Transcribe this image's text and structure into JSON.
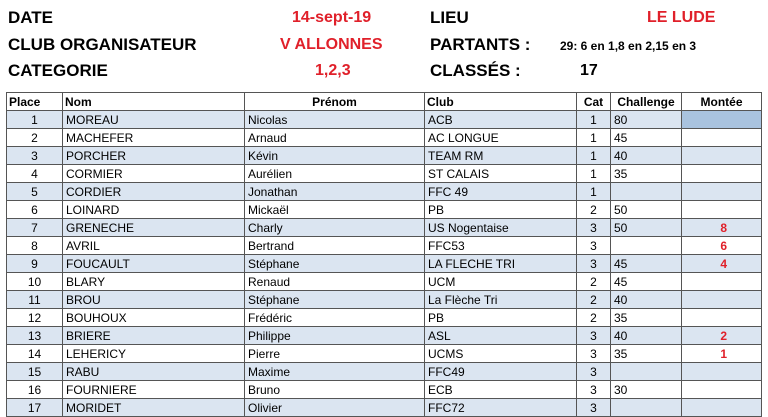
{
  "header": {
    "date_label": "DATE",
    "date_value": "14-sept-19",
    "lieu_label": "LIEU",
    "lieu_value": "LE LUDE",
    "club_label": "CLUB ORGANISATEUR",
    "club_value": "V ALLONNES",
    "partants_label": "PARTANTS :",
    "partants_value": "29: 6 en 1,8  en 2,15 en 3",
    "categorie_label": "CATEGORIE",
    "categorie_value": "1,2,3",
    "classes_label": "CLASSÉS :",
    "classes_value": "17"
  },
  "table": {
    "columns": {
      "place": "Place",
      "nom": "Nom",
      "prenom": "Prénom",
      "club": "Club",
      "cat": "Cat",
      "challenge": "Challenge",
      "montee": "Montée"
    },
    "rows": [
      {
        "place": "1",
        "nom": "MOREAU",
        "prenom": "Nicolas",
        "club": "ACB",
        "cat": "1",
        "challenge": "80",
        "montee": ""
      },
      {
        "place": "2",
        "nom": "MACHEFER",
        "prenom": "Arnaud",
        "club": "AC LONGUE",
        "cat": "1",
        "challenge": "45",
        "montee": ""
      },
      {
        "place": "3",
        "nom": "PORCHER",
        "prenom": "Kévin",
        "club": "TEAM RM",
        "cat": "1",
        "challenge": "40",
        "montee": ""
      },
      {
        "place": "4",
        "nom": "CORMIER",
        "prenom": "Aurélien",
        "club": " ST CALAIS",
        "cat": "1",
        "challenge": "35",
        "montee": ""
      },
      {
        "place": "5",
        "nom": "CORDIER",
        "prenom": "Jonathan",
        "club": "FFC 49",
        "cat": "1",
        "challenge": "",
        "montee": ""
      },
      {
        "place": "6",
        "nom": "LOINARD",
        "prenom": "Mickaël",
        "club": "PB",
        "cat": "2",
        "challenge": "50",
        "montee": ""
      },
      {
        "place": "7",
        "nom": "GRENECHE",
        "prenom": "Charly",
        "club": "US Nogentaise",
        "cat": "3",
        "challenge": "50",
        "montee": "8"
      },
      {
        "place": "8",
        "nom": "AVRIL",
        "prenom": "Bertrand",
        "club": "FFC53",
        "cat": "3",
        "challenge": "",
        "montee": "6"
      },
      {
        "place": "9",
        "nom": "FOUCAULT",
        "prenom": "Stéphane",
        "club": "LA FLECHE TRI",
        "cat": "3",
        "challenge": "45",
        "montee": "4"
      },
      {
        "place": "10",
        "nom": "BLARY",
        "prenom": "Renaud",
        "club": "UCM",
        "cat": "2",
        "challenge": "45",
        "montee": ""
      },
      {
        "place": "11",
        "nom": "BROU",
        "prenom": "Stéphane",
        "club": "La Flèche Tri",
        "cat": "2",
        "challenge": "40",
        "montee": ""
      },
      {
        "place": "12",
        "nom": "BOUHOUX",
        "prenom": "Frédéric",
        "club": "PB",
        "cat": "2",
        "challenge": "35",
        "montee": ""
      },
      {
        "place": "13",
        "nom": "BRIERE",
        "prenom": "Philippe",
        "club": "ASL",
        "cat": "3",
        "challenge": "40",
        "montee": "2"
      },
      {
        "place": "14",
        "nom": "LEHERICY",
        "prenom": "Pierre",
        "club": "UCMS",
        "cat": "3",
        "challenge": "35",
        "montee": "1"
      },
      {
        "place": "15",
        "nom": "RABU",
        "prenom": "Maxime",
        "club": "FFC49",
        "cat": "3",
        "challenge": "",
        "montee": ""
      },
      {
        "place": "16",
        "nom": "FOURNIERE",
        "prenom": "Bruno",
        "club": "ECB",
        "cat": "3",
        "challenge": "30",
        "montee": ""
      },
      {
        "place": "17",
        "nom": "MORIDET",
        "prenom": "Olivier",
        "club": "FFC72",
        "cat": "3",
        "challenge": "",
        "montee": ""
      }
    ]
  },
  "colors": {
    "accent_red": "#e0202a",
    "row_tint": "#dbe5f1",
    "montee_highlight": "#a9c3df"
  }
}
